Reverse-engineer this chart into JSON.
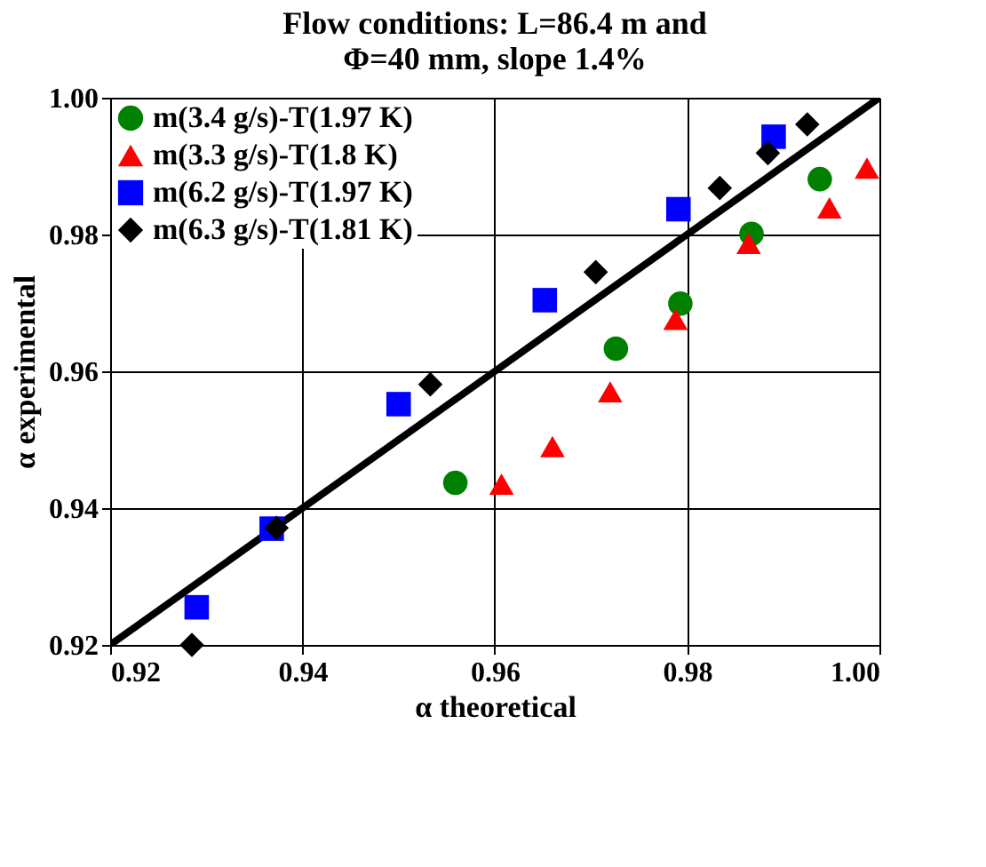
{
  "chart_data": {
    "type": "scatter",
    "title": [
      "Flow conditions:  L=86.4 m and",
      "Φ=40 mm, slope 1.4%"
    ],
    "xlabel": "α theoretical",
    "ylabel": "α experimental",
    "xlim": [
      0.92,
      1.0
    ],
    "ylim": [
      0.92,
      1.0
    ],
    "xticks": [
      {
        "value": 0.92,
        "label": "0.92"
      },
      {
        "value": 0.94,
        "label": "0.94"
      },
      {
        "value": 0.96,
        "label": "0.96"
      },
      {
        "value": 0.98,
        "label": "0.98"
      },
      {
        "value": 1.0,
        "label": "1.00"
      }
    ],
    "yticks": [
      {
        "value": 0.92,
        "label": "0.92"
      },
      {
        "value": 0.94,
        "label": "0.94"
      },
      {
        "value": 0.96,
        "label": "0.96"
      },
      {
        "value": 0.98,
        "label": "0.98"
      },
      {
        "value": 1.0,
        "label": "1.00"
      }
    ],
    "grid": true,
    "legend": "top left",
    "series": [
      {
        "name": "m(3.4 g/s)-T(1.97 K)",
        "color": "#008000",
        "marker": "circle",
        "x": [
          0.9559,
          0.9726,
          0.9793,
          0.9867,
          0.9938
        ],
        "values": [
          0.9437,
          0.9633,
          0.9699,
          0.9801,
          0.9881
        ]
      },
      {
        "name": "m(3.3 g/s)-T(1.8 K)",
        "color": "#ff0000",
        "marker": "triangle",
        "x": [
          0.9607,
          0.966,
          0.972,
          0.9788,
          0.9864,
          0.9948,
          0.9987
        ],
        "values": [
          0.9435,
          0.949,
          0.957,
          0.9676,
          0.9787,
          0.9839,
          0.9897
        ]
      },
      {
        "name": "m(6.2 g/s)-T(1.97 K)",
        "color": "#0000ff",
        "marker": "square",
        "x": [
          0.929,
          0.9368,
          0.95,
          0.9652,
          0.9791,
          0.989
        ],
        "values": [
          0.9255,
          0.937,
          0.9552,
          0.9704,
          0.9837,
          0.9943
        ]
      },
      {
        "name": "m(6.3 g/s)-T(1.81 K)",
        "color": "#000000",
        "marker": "diamond",
        "x": [
          0.9285,
          0.9373,
          0.9533,
          0.9705,
          0.9834,
          0.9884,
          0.9925
        ],
        "values": [
          0.92,
          0.9371,
          0.9581,
          0.9745,
          0.9868,
          0.9919,
          0.9961
        ]
      },
      {
        "type": "line",
        "color": "#000000",
        "line_style": "solid",
        "x": [
          0.92,
          1.0
        ],
        "values": [
          0.92,
          1.0
        ]
      }
    ]
  }
}
